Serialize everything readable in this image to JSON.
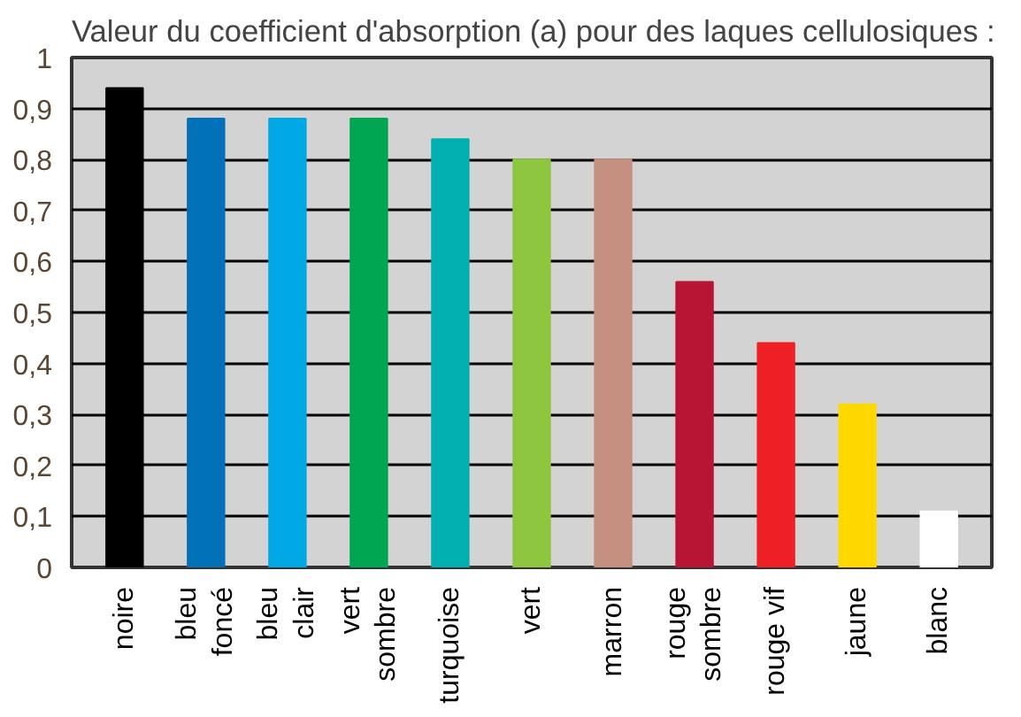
{
  "chart_data": {
    "type": "bar",
    "title": "Valeur du coefficient d'absorption (a) pour des laques cellulosiques :",
    "categories": [
      "noire",
      "bleu\nfoncé",
      "bleu\nclair",
      "vert\nsombre",
      "turquoise",
      "vert",
      "marron",
      "rouge\nsombre",
      "rouge vif",
      "jaune",
      "blanc"
    ],
    "values": [
      0.94,
      0.88,
      0.88,
      0.88,
      0.84,
      0.8,
      0.8,
      0.56,
      0.44,
      0.32,
      0.11
    ],
    "colors": [
      "#000000",
      "#0070b8",
      "#00a8e6",
      "#00a651",
      "#00b0b0",
      "#8dc63f",
      "#c49080",
      "#b81434",
      "#ee2026",
      "#ffd800",
      "#ffffff"
    ],
    "ylim": [
      0,
      1
    ],
    "yticks": [
      0,
      {
        "value": 0.1,
        "label": "0,1"
      },
      {
        "value": 0.2,
        "label": "0,2"
      },
      {
        "value": 0.3,
        "label": "0,3"
      },
      {
        "value": 0.4,
        "label": "0,4"
      },
      {
        "value": 0.5,
        "label": "0,5"
      },
      {
        "value": 0.6,
        "label": "0,6"
      },
      {
        "value": 0.7,
        "label": "0,7"
      },
      {
        "value": 0.8,
        "label": "0,8"
      },
      {
        "value": 0.9,
        "label": "0,9"
      },
      1
    ],
    "grid": "y"
  }
}
